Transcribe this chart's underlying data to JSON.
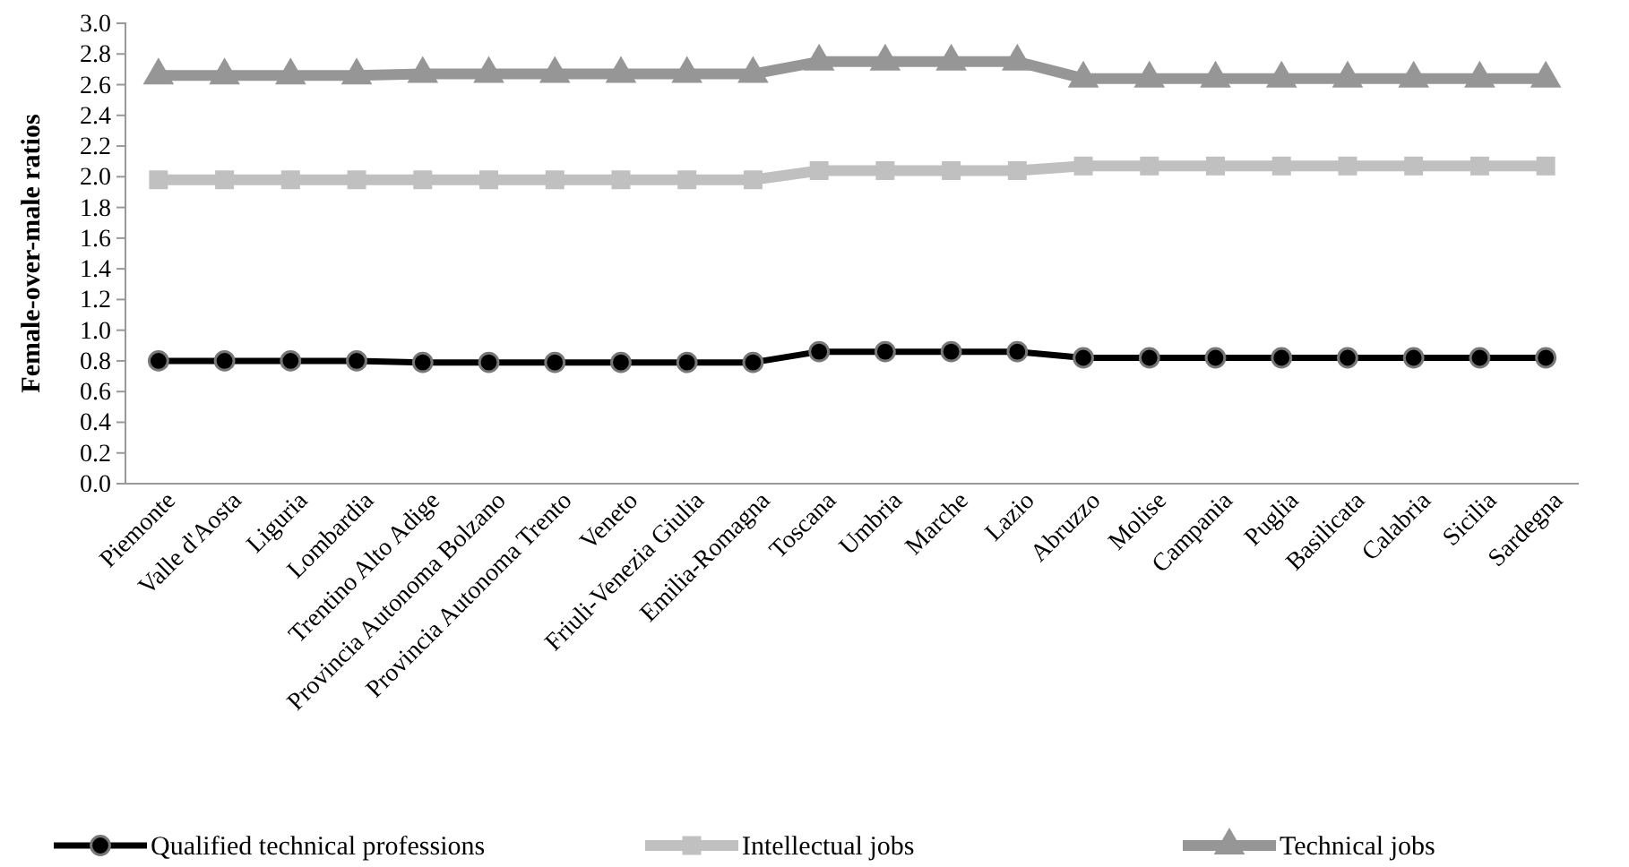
{
  "chart_data": {
    "type": "line",
    "ylabel": "Female-over-male ratios",
    "categories": [
      "Piemonte",
      "Valle d'Aosta",
      "Liguria",
      "Lombardia",
      "Trentino Alto Adige",
      "Provincia Autonoma Bolzano",
      "Provincia Autonoma Trento",
      "Veneto",
      "Friuli-Venezia Giulia",
      "Emilia-Romagna",
      "Toscana",
      "Umbria",
      "Marche",
      "Lazio",
      "Abruzzo",
      "Molise",
      "Campania",
      "Puglia",
      "Basilicata",
      "Calabria",
      "Sicilia",
      "Sardegna"
    ],
    "series": [
      {
        "name": "Qualified technical professions",
        "color": "#000000",
        "marker": "circle",
        "values": [
          0.8,
          0.8,
          0.8,
          0.8,
          0.79,
          0.79,
          0.79,
          0.79,
          0.79,
          0.79,
          0.86,
          0.86,
          0.86,
          0.86,
          0.82,
          0.82,
          0.82,
          0.82,
          0.82,
          0.82,
          0.82,
          0.82
        ]
      },
      {
        "name": "Intellectual jobs",
        "color": "#c0c0c0",
        "marker": "square",
        "values": [
          1.98,
          1.98,
          1.98,
          1.98,
          1.98,
          1.98,
          1.98,
          1.98,
          1.98,
          1.98,
          2.04,
          2.04,
          2.04,
          2.04,
          2.07,
          2.07,
          2.07,
          2.07,
          2.07,
          2.07,
          2.07,
          2.07
        ]
      },
      {
        "name": "Technical jobs",
        "color": "#969696",
        "marker": "triangle",
        "values": [
          2.66,
          2.66,
          2.66,
          2.66,
          2.67,
          2.67,
          2.67,
          2.67,
          2.67,
          2.67,
          2.75,
          2.75,
          2.75,
          2.75,
          2.64,
          2.64,
          2.64,
          2.64,
          2.64,
          2.64,
          2.64,
          2.64
        ]
      }
    ],
    "ylim": [
      0,
      3.0
    ],
    "yticks": [
      {
        "value": 0,
        "label": "0.0"
      },
      {
        "value": 0.2,
        "label": "0.2"
      },
      {
        "value": 0.4,
        "label": "0.4"
      },
      {
        "value": 0.6,
        "label": "0.6"
      },
      {
        "value": 0.8,
        "label": "0.8"
      },
      {
        "value": 1.0,
        "label": "1.0"
      },
      {
        "value": 1.2,
        "label": "1.2"
      },
      {
        "value": 1.4,
        "label": "1.4"
      },
      {
        "value": 1.6,
        "label": "1.6"
      },
      {
        "value": 1.8,
        "label": "1.8"
      },
      {
        "value": 2.0,
        "label": "2.0"
      },
      {
        "value": 2.2,
        "label": "2.2"
      },
      {
        "value": 2.4,
        "label": "2.4"
      },
      {
        "value": 2.6,
        "label": "2.6"
      },
      {
        "value": 2.8,
        "label": "2.8"
      },
      {
        "value": 3.0,
        "label": "3.0"
      }
    ],
    "grid": false,
    "legend": "bottom"
  }
}
